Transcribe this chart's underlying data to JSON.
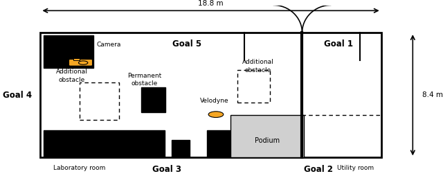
{
  "fig_width": 6.4,
  "fig_height": 2.54,
  "dpi": 100,
  "title_arrow_label": "18.8 m",
  "goal5_label": "Goal 5",
  "goal1_label": "Goal 1",
  "goal2_label": "Goal 2",
  "goal3_label": "Goal 3",
  "goal4_label": "Goal 4",
  "lab_label": "Laboratory room",
  "util_label": "Utility room",
  "dim_84": "8.4 m",
  "camera_label": "Camera",
  "perm_label": [
    "Permanent",
    "obstacle"
  ],
  "add_label1": [
    "Additional",
    "obstacle"
  ],
  "add_label2": [
    "Additional",
    "obstacle"
  ],
  "velodyne_label": "Velodyne",
  "podium_label": "Podium",
  "black": "#000000",
  "orange": "#f5a623",
  "podium_color": "#d0d0d0"
}
